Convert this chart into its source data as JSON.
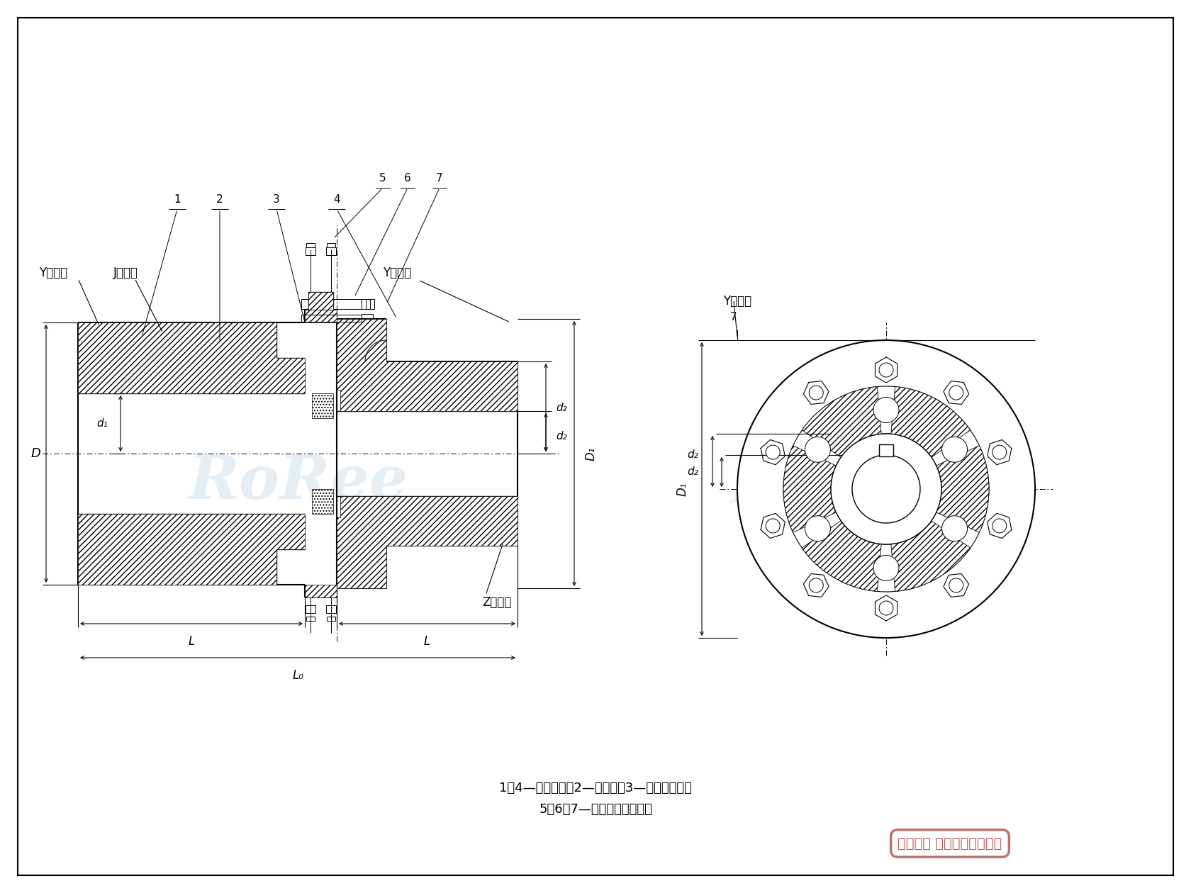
{
  "bg_color": "#ffffff",
  "line_color": "#000000",
  "hatch_color": "#000000",
  "watermark_color": "#aec8e0",
  "title_line1": "1、4—半联轴器；2—弹性件；3—法兰连接件；",
  "title_line2": "5、6、7—螺栓、螺母、坤片",
  "copyright_text": "版权所有 侵权必被严厉追究",
  "label_Y_left": "Y型轴孔",
  "label_J_left": "J型轴孔",
  "label_Y_right": "Y型轴孔",
  "label_Z_right": "Z型轴孔",
  "label_D": "D",
  "label_d1": "d₁",
  "label_d2": "d₂",
  "label_D1": "D₁",
  "label_dz": "d₂",
  "label_L": "L",
  "label_L0": "L₀"
}
